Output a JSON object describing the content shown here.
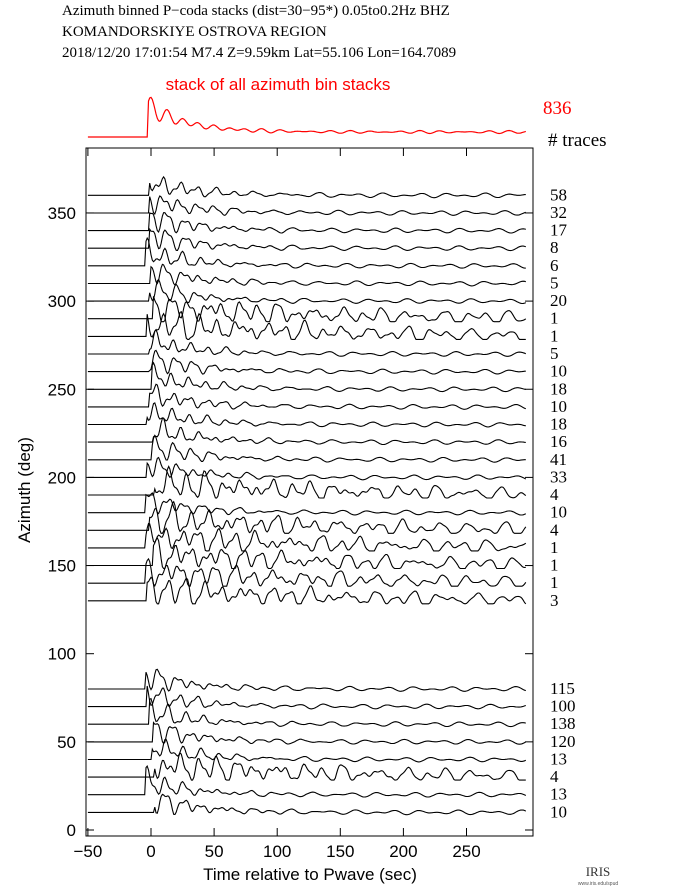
{
  "header": {
    "line1": "Azimuth binned P−coda stacks (dist=30−95*)  0.05to0.2Hz  BHZ",
    "line2": "KOMANDORSKIYE OSTROVA REGION",
    "line3": "2018/12/20  17:01:54  M7.4  Z=9.59km Lat=55.106 Lon=164.7089"
  },
  "logo": {
    "text": "IRIS",
    "sub": "www.iris.edu/spud"
  },
  "chart_data": {
    "type": "line",
    "title": "Azimuth binned P-coda stacks",
    "xlabel": "Time relative to Pwave (sec)",
    "ylabel": "Azimuth (deg)",
    "xlim": [
      -52,
      298
    ],
    "ylim": [
      -2,
      385
    ],
    "xticks": [
      -50,
      0,
      50,
      100,
      150,
      200,
      250
    ],
    "yticks": [
      0,
      50,
      100,
      150,
      200,
      250,
      300,
      350
    ],
    "stack": {
      "label": "stack of all azimuth bin stacks",
      "traces": "836",
      "color": "#ff0000"
    },
    "traces_header": "# traces",
    "series": [
      {
        "azimuth": 360,
        "traces": "58"
      },
      {
        "azimuth": 350,
        "traces": "32"
      },
      {
        "azimuth": 340,
        "traces": "17"
      },
      {
        "azimuth": 330,
        "traces": "8"
      },
      {
        "azimuth": 320,
        "traces": "6"
      },
      {
        "azimuth": 310,
        "traces": "5"
      },
      {
        "azimuth": 300,
        "traces": "20"
      },
      {
        "azimuth": 290,
        "traces": "1"
      },
      {
        "azimuth": 280,
        "traces": "1"
      },
      {
        "azimuth": 270,
        "traces": "5"
      },
      {
        "azimuth": 260,
        "traces": "10"
      },
      {
        "azimuth": 250,
        "traces": "18"
      },
      {
        "azimuth": 240,
        "traces": "10"
      },
      {
        "azimuth": 230,
        "traces": "18"
      },
      {
        "azimuth": 220,
        "traces": "16"
      },
      {
        "azimuth": 210,
        "traces": "41"
      },
      {
        "azimuth": 200,
        "traces": "33"
      },
      {
        "azimuth": 190,
        "traces": "4"
      },
      {
        "azimuth": 180,
        "traces": "10"
      },
      {
        "azimuth": 170,
        "traces": "4"
      },
      {
        "azimuth": 160,
        "traces": "1"
      },
      {
        "azimuth": 150,
        "traces": "1"
      },
      {
        "azimuth": 140,
        "traces": "1"
      },
      {
        "azimuth": 130,
        "traces": "3"
      },
      {
        "azimuth": 80,
        "traces": "115"
      },
      {
        "azimuth": 70,
        "traces": "100"
      },
      {
        "azimuth": 60,
        "traces": "138"
      },
      {
        "azimuth": 50,
        "traces": "120"
      },
      {
        "azimuth": 40,
        "traces": "13"
      },
      {
        "azimuth": 30,
        "traces": "4"
      },
      {
        "azimuth": 20,
        "traces": "13"
      },
      {
        "azimuth": 10,
        "traces": "10"
      }
    ]
  }
}
